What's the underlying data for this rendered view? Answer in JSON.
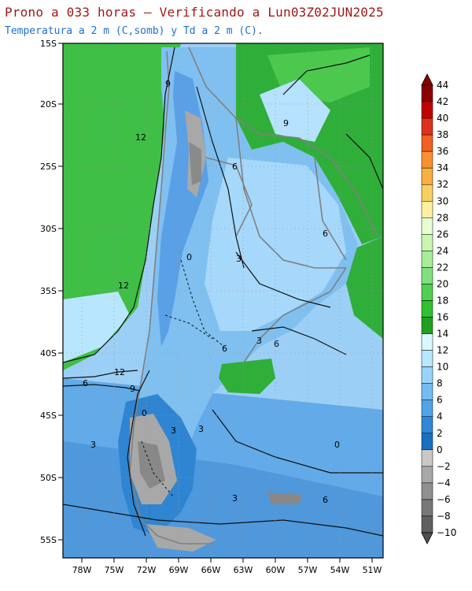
{
  "header": {
    "title": "Prono a 033 horas – Verificando a Lun03Z02JUN2025",
    "subtitle": "Temperatura a 2 m (C,somb) y Td a 2 m (C)."
  },
  "map": {
    "lat_ticks": [
      "15S",
      "20S",
      "25S",
      "30S",
      "35S",
      "40S",
      "45S",
      "50S",
      "55S"
    ],
    "lon_ticks": [
      "78W",
      "75W",
      "72W",
      "69W",
      "66W",
      "63W",
      "60W",
      "57W",
      "54W",
      "51W"
    ],
    "contour_labels": [
      "12",
      "12",
      "9",
      "9",
      "6",
      "6",
      "3",
      "0",
      "12",
      "9",
      "6",
      "3",
      "0",
      "3",
      "6",
      "3",
      "6",
      "3",
      "0",
      "6",
      "3"
    ]
  },
  "colorbar": {
    "labels": [
      "44",
      "42",
      "40",
      "38",
      "36",
      "34",
      "32",
      "30",
      "28",
      "26",
      "24",
      "22",
      "20",
      "18",
      "16",
      "14",
      "12",
      "10",
      "8",
      "6",
      "4",
      "2",
      "0",
      "−2",
      "−4",
      "−6",
      "−8",
      "−10"
    ],
    "colors": [
      "#8b0000",
      "#c00000",
      "#e03020",
      "#f06020",
      "#f89030",
      "#f8b040",
      "#f8d060",
      "#fff0a0",
      "#e8ffd0",
      "#c8f5b0",
      "#a8ec98",
      "#80e080",
      "#50d050",
      "#30c030",
      "#20a020",
      "#d8f8ff",
      "#b8e8ff",
      "#98d4f8",
      "#74bcf0",
      "#50a4e8",
      "#3088d8",
      "#1870c0",
      "#c8c8c8",
      "#a8a8a8",
      "#909090",
      "#787878",
      "#606060"
    ]
  }
}
